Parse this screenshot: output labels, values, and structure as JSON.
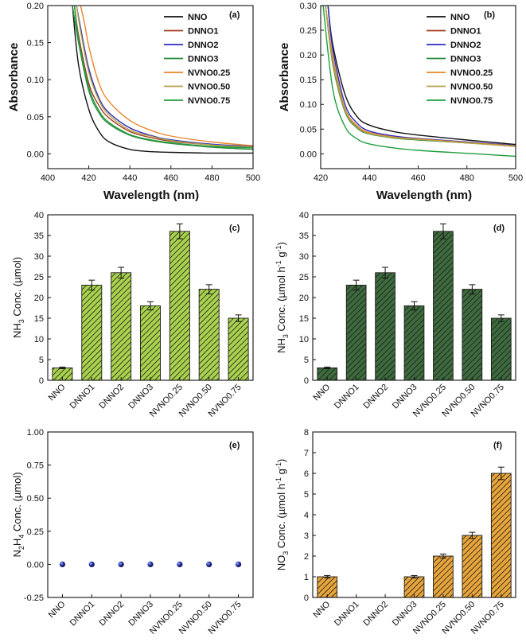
{
  "figure": {
    "colors": {
      "axis": "#111111",
      "green_light": "#a9d24e",
      "green_dark": "#3d6b3d",
      "orange": "#e8a53b",
      "sphere": "#1f2e9e"
    }
  },
  "chart_data": [
    {
      "id": "a",
      "type": "line",
      "panel_label": "(a)",
      "xlabel": "Wavelength (nm)",
      "ylabel": "Absorbance",
      "xlim": [
        400,
        500
      ],
      "ylim": [
        -0.02,
        0.2
      ],
      "xticks": [
        "400",
        "420",
        "440",
        "460",
        "480",
        "500"
      ],
      "yticks": [
        "0.00",
        "0.05",
        "0.10",
        "0.15",
        "0.20"
      ],
      "legend_position": "top-right",
      "series": [
        {
          "name": "NNO",
          "color": "#111111",
          "x": [
            412,
            415,
            420,
            425,
            430,
            440,
            450,
            460,
            480,
            500
          ],
          "y": [
            0.2,
            0.12,
            0.06,
            0.03,
            0.016,
            0.006,
            0.003,
            0.002,
            0.001,
            0.001
          ]
        },
        {
          "name": "DNNO1",
          "color": "#a63a1e",
          "x": [
            413,
            415,
            420,
            425,
            430,
            440,
            450,
            460,
            480,
            500
          ],
          "y": [
            0.2,
            0.16,
            0.095,
            0.065,
            0.048,
            0.03,
            0.022,
            0.017,
            0.012,
            0.009
          ]
        },
        {
          "name": "DNNO2",
          "color": "#2b2bbf",
          "x": [
            414,
            416,
            420,
            425,
            430,
            440,
            450,
            460,
            480,
            500
          ],
          "y": [
            0.2,
            0.17,
            0.115,
            0.075,
            0.055,
            0.035,
            0.025,
            0.019,
            0.013,
            0.01
          ]
        },
        {
          "name": "DNNO3",
          "color": "#2a8a3a",
          "x": [
            412,
            415,
            420,
            425,
            430,
            440,
            450,
            460,
            480,
            500
          ],
          "y": [
            0.2,
            0.15,
            0.085,
            0.055,
            0.04,
            0.025,
            0.018,
            0.014,
            0.009,
            0.006
          ]
        },
        {
          "name": "NVNO0.25",
          "color": "#e8862a",
          "x": [
            416,
            418,
            420,
            425,
            430,
            440,
            450,
            460,
            480,
            500
          ],
          "y": [
            0.2,
            0.175,
            0.145,
            0.095,
            0.07,
            0.045,
            0.032,
            0.024,
            0.016,
            0.011
          ]
        },
        {
          "name": "NVNO0.50",
          "color": "#b3a24a",
          "x": [
            414,
            416,
            420,
            425,
            430,
            440,
            450,
            460,
            480,
            500
          ],
          "y": [
            0.2,
            0.165,
            0.11,
            0.072,
            0.052,
            0.032,
            0.024,
            0.018,
            0.012,
            0.009
          ]
        },
        {
          "name": "NVNO0.75",
          "color": "#1f9e3f",
          "x": [
            413,
            415,
            420,
            425,
            430,
            440,
            450,
            460,
            480,
            500
          ],
          "y": [
            0.2,
            0.155,
            0.09,
            0.058,
            0.042,
            0.026,
            0.019,
            0.015,
            0.01,
            0.008
          ]
        }
      ]
    },
    {
      "id": "b",
      "type": "line",
      "panel_label": "(b)",
      "xlabel": "Wavelength (nm)",
      "ylabel": "Absorbance",
      "xlim": [
        420,
        500
      ],
      "ylim": [
        -0.03,
        0.3
      ],
      "xticks": [
        "420",
        "440",
        "460",
        "480",
        "500"
      ],
      "yticks": [
        "0.00",
        "0.05",
        "0.10",
        "0.15",
        "0.20",
        "0.25",
        "0.30"
      ],
      "legend_position": "top-right",
      "series": [
        {
          "name": "NNO",
          "color": "#111111",
          "x": [
            423,
            425,
            430,
            435,
            440,
            450,
            460,
            480,
            500
          ],
          "y": [
            0.3,
            0.22,
            0.12,
            0.075,
            0.058,
            0.045,
            0.038,
            0.028,
            0.019
          ]
        },
        {
          "name": "DNNO1",
          "color": "#a63a1e",
          "x": [
            422,
            425,
            430,
            435,
            440,
            450,
            460,
            480,
            500
          ],
          "y": [
            0.3,
            0.19,
            0.09,
            0.055,
            0.042,
            0.034,
            0.03,
            0.023,
            0.016
          ]
        },
        {
          "name": "DNNO2",
          "color": "#2b2bbf",
          "x": [
            423,
            425,
            430,
            435,
            440,
            450,
            460,
            480,
            500
          ],
          "y": [
            0.3,
            0.21,
            0.1,
            0.062,
            0.046,
            0.036,
            0.031,
            0.024,
            0.017
          ]
        },
        {
          "name": "DNNO3",
          "color": "#2a8a3a",
          "x": [
            422,
            425,
            430,
            435,
            440,
            450,
            460,
            480,
            500
          ],
          "y": [
            0.3,
            0.18,
            0.085,
            0.052,
            0.04,
            0.032,
            0.028,
            0.022,
            0.015
          ]
        },
        {
          "name": "NVNO0.25",
          "color": "#e8862a",
          "x": [
            422,
            425,
            430,
            435,
            440,
            450,
            460,
            480,
            500
          ],
          "y": [
            0.3,
            0.195,
            0.092,
            0.057,
            0.043,
            0.034,
            0.03,
            0.023,
            0.016
          ]
        },
        {
          "name": "NVNO0.50",
          "color": "#b3a24a",
          "x": [
            422,
            425,
            430,
            435,
            440,
            450,
            460,
            480,
            500
          ],
          "y": [
            0.3,
            0.185,
            0.088,
            0.054,
            0.041,
            0.033,
            0.029,
            0.022,
            0.015
          ]
        },
        {
          "name": "NVNO0.75",
          "color": "#1f9e3f",
          "x": [
            421,
            425,
            430,
            435,
            440,
            450,
            460,
            480,
            500
          ],
          "y": [
            0.3,
            0.13,
            0.055,
            0.03,
            0.02,
            0.012,
            0.007,
            0.001,
            -0.005
          ]
        }
      ]
    },
    {
      "id": "c",
      "type": "bar",
      "panel_label": "(c)",
      "ylabel": "NH3 Conc. (µmol)",
      "ylabel_parts": [
        "NH",
        "3",
        " Conc. (",
        "µ",
        "mol)"
      ],
      "ylim": [
        0,
        40
      ],
      "yticks": [
        "0",
        "5",
        "10",
        "15",
        "20",
        "25",
        "30",
        "35",
        "40"
      ],
      "categories": [
        "NNO",
        "DNNO1",
        "DNNO2",
        "DNNO3",
        "NVNO0.25",
        "NVNO0.50",
        "NVNO0.75"
      ],
      "values": [
        3,
        23,
        26,
        18,
        36,
        22,
        15
      ],
      "errors": [
        0.2,
        1.2,
        1.3,
        1.0,
        1.8,
        1.1,
        0.8
      ],
      "color": "#a9d24e"
    },
    {
      "id": "d",
      "type": "bar",
      "panel_label": "(d)",
      "ylabel": "NH3 Conc. (µmol h-1 g-1)",
      "ylabel_parts": [
        "NH",
        "3",
        " Conc. (",
        "µ",
        "mol h",
        "-1",
        " g",
        "-1",
        ")"
      ],
      "ylim": [
        0,
        40
      ],
      "yticks": [
        "0",
        "5",
        "10",
        "15",
        "20",
        "25",
        "30",
        "35",
        "40"
      ],
      "categories": [
        "NNO",
        "DNNO1",
        "DNNO2",
        "DNNO3",
        "NVNO0.25",
        "NVNO0.50",
        "NVNO0.75"
      ],
      "values": [
        3,
        23,
        26,
        18,
        36,
        22,
        15
      ],
      "errors": [
        0.2,
        1.2,
        1.3,
        1.0,
        1.8,
        1.1,
        0.8
      ],
      "color": "#3d6b3d"
    },
    {
      "id": "e",
      "type": "scatter",
      "panel_label": "(e)",
      "ylabel": "N2H4 Conc. (µmol)",
      "ylabel_parts": [
        "N",
        "2",
        "H",
        "4",
        " Conc. (",
        "µ",
        "mol)"
      ],
      "ylim": [
        -0.25,
        1.0
      ],
      "yticks": [
        "-0.25",
        "0.00",
        "0.25",
        "0.50",
        "0.75",
        "1.00"
      ],
      "categories": [
        "NNO",
        "DNNO1",
        "DNNO2",
        "DNNO3",
        "NVNO0.25",
        "NVNO0.50",
        "NVNO0.75"
      ],
      "values": [
        0,
        0,
        0,
        0,
        0,
        0,
        0
      ],
      "color": "#1f2e9e"
    },
    {
      "id": "f",
      "type": "bar",
      "panel_label": "(f)",
      "ylabel": "NO3 Conc. (µmol h-1 g-1)",
      "ylabel_parts": [
        "NO",
        "3",
        " Conc. (",
        "µ",
        "mol h",
        "-1",
        " g",
        "-1",
        ")"
      ],
      "ylim": [
        0,
        8
      ],
      "yticks": [
        "0",
        "1",
        "2",
        "3",
        "4",
        "5",
        "6",
        "7",
        "8"
      ],
      "categories": [
        "NNO",
        "DNNO1",
        "DNNO2",
        "DNNO3",
        "NVNO0.25",
        "NVNO0.50",
        "NVNO0.75"
      ],
      "values": [
        1,
        0,
        0,
        1,
        2,
        3,
        6
      ],
      "errors": [
        0.06,
        0,
        0,
        0.06,
        0.1,
        0.15,
        0.3
      ],
      "color": "#e8a53b"
    }
  ]
}
